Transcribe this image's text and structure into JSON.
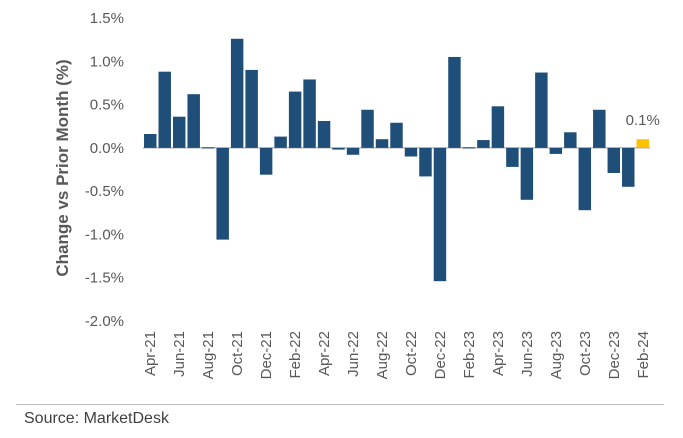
{
  "chart_data": {
    "type": "bar",
    "title": "",
    "xlabel": "",
    "ylabel": "Change vs Prior Month (%)",
    "ylim": [
      -2.0,
      1.5
    ],
    "yticks": [
      -2.0,
      -1.5,
      -1.0,
      -0.5,
      0.0,
      0.5,
      1.0,
      1.5
    ],
    "ytick_labels": [
      "-2.0%",
      "-1.5%",
      "-1.0%",
      "-0.5%",
      "0.0%",
      "0.5%",
      "1.0%",
      "1.5%"
    ],
    "categories": [
      "Apr-21",
      "May-21",
      "Jun-21",
      "Jul-21",
      "Aug-21",
      "Sep-21",
      "Oct-21",
      "Nov-21",
      "Dec-21",
      "Jan-22",
      "Feb-22",
      "Mar-22",
      "Apr-22",
      "May-22",
      "Jun-22",
      "Jul-22",
      "Aug-22",
      "Sep-22",
      "Oct-22",
      "Nov-22",
      "Dec-22",
      "Jan-23",
      "Feb-23",
      "Mar-23",
      "Apr-23",
      "May-23",
      "Jun-23",
      "Jul-23",
      "Aug-23",
      "Sep-23",
      "Oct-23",
      "Nov-23",
      "Dec-23",
      "Jan-24",
      "Feb-24"
    ],
    "values": [
      0.16,
      0.88,
      0.36,
      0.62,
      0.0,
      -1.06,
      1.26,
      0.9,
      -0.31,
      0.13,
      0.65,
      0.79,
      0.31,
      -0.02,
      -0.08,
      0.44,
      0.1,
      0.29,
      -0.1,
      -0.33,
      -1.54,
      1.05,
      0.01,
      0.09,
      0.48,
      -0.22,
      -0.6,
      0.87,
      -0.07,
      0.18,
      -0.72,
      0.44,
      -0.29,
      -0.45,
      0.1
    ],
    "xtick_labels": [
      "Apr-21",
      "Jun-21",
      "Aug-21",
      "Oct-21",
      "Dec-21",
      "Feb-22",
      "Apr-22",
      "Jun-22",
      "Aug-22",
      "Oct-22",
      "Dec-22",
      "Feb-23",
      "Apr-23",
      "Jun-23",
      "Aug-23",
      "Oct-23",
      "Dec-23",
      "Feb-24"
    ],
    "series_color": "#1f4e79",
    "highlight_color": "#ffc000",
    "highlight_index": 34,
    "annotation": {
      "text": "0.1%",
      "category": "Feb-24"
    }
  },
  "source": "Source: MarketDesk"
}
